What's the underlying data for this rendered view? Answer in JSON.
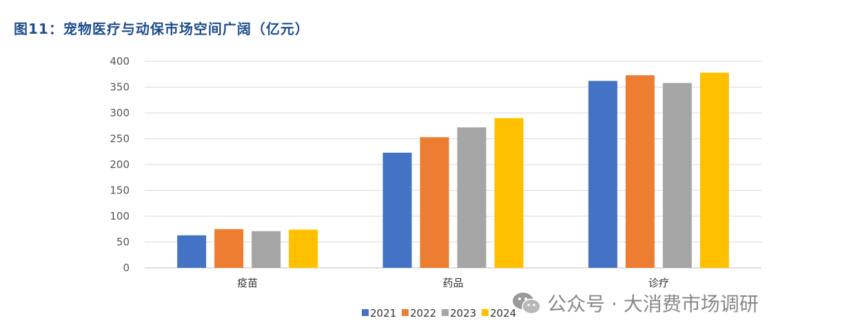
{
  "chart_data": {
    "type": "bar",
    "title": "图11：宠物医疗与动保市场空间广阔（亿元）",
    "categories": [
      "疫苗",
      "药品",
      "诊疗"
    ],
    "yticks": [
      0,
      50,
      100,
      150,
      200,
      250,
      300,
      350,
      400
    ],
    "ylim": [
      0,
      400
    ],
    "grid": true,
    "legend_position": "bottom",
    "series": [
      {
        "name": "2021",
        "color": "#4472C4",
        "values": [
          63,
          223,
          362
        ]
      },
      {
        "name": "2022",
        "color": "#ED7D31",
        "values": [
          75,
          253,
          373
        ]
      },
      {
        "name": "2023",
        "color": "#A5A5A5",
        "values": [
          71,
          272,
          358
        ]
      },
      {
        "name": "2024",
        "color": "#FFC000",
        "values": [
          74,
          290,
          378
        ]
      }
    ]
  },
  "watermark": {
    "text": "公众号 · 大消费市场调研",
    "icon": "wechat-icon"
  }
}
